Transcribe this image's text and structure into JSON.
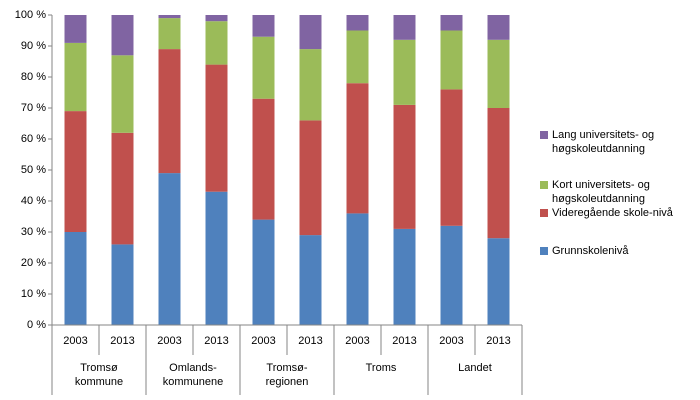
{
  "chart_data": {
    "type": "stacked-bar",
    "categories": [
      "2003",
      "2013",
      "2003",
      "2013",
      "2003",
      "2013",
      "2003",
      "2013",
      "2003",
      "2013"
    ],
    "groups": [
      "Tromsø\nkommune",
      "Omlands-\nkommunene",
      "Tromsø-\nregionen",
      "Troms",
      "Landet"
    ],
    "series": [
      {
        "name": "Grunnskolenivå",
        "color": "#4f81bd",
        "values": [
          30,
          26,
          49,
          43,
          34,
          29,
          36,
          31,
          32,
          28
        ]
      },
      {
        "name": "Videregående skole-nivå",
        "color": "#c0504d",
        "values": [
          39,
          36,
          40,
          41,
          39,
          37,
          42,
          40,
          44,
          42
        ]
      },
      {
        "name": "Kort universitets- og\nhøgskoleutdanning",
        "color": "#9bbb59",
        "values": [
          22,
          25,
          10,
          14,
          20,
          23,
          17,
          21,
          19,
          22
        ]
      },
      {
        "name": "Lang universitets- og\nhøgskoleutdanning",
        "color": "#8064a2",
        "values": [
          9,
          13,
          1,
          2,
          7,
          11,
          5,
          8,
          5,
          8
        ]
      }
    ],
    "ylim": [
      0,
      100
    ],
    "yticks": [
      {
        "value": 0,
        "label": "0 %"
      },
      {
        "value": 10,
        "label": "10 %"
      },
      {
        "value": 20,
        "label": "20 %"
      },
      {
        "value": 30,
        "label": "30 %"
      },
      {
        "value": 40,
        "label": "40 %"
      },
      {
        "value": 50,
        "label": "50 %"
      },
      {
        "value": 60,
        "label": "60 %"
      },
      {
        "value": 70,
        "label": "70 %"
      },
      {
        "value": 80,
        "label": "80 %"
      },
      {
        "value": 90,
        "label": "90 %"
      },
      {
        "value": 100,
        "label": "100 %"
      }
    ],
    "grid": false,
    "legend": "right"
  }
}
